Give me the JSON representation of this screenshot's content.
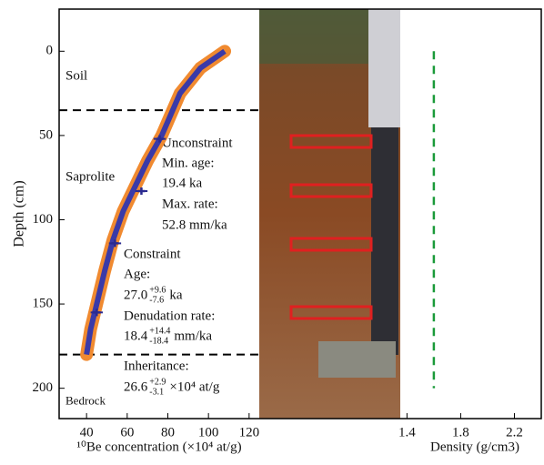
{
  "chart_data": [
    {
      "type": "profile",
      "xlabel": "¹⁰Be concentration (×10⁴ at/g)",
      "ylabel": "Depth (cm)",
      "xlim": [
        26.5,
        125
      ],
      "xticks": [
        40,
        60,
        80,
        100,
        120
      ],
      "ylim": [
        -25,
        218
      ],
      "yticks": [
        0,
        50,
        100,
        150,
        200
      ],
      "zones": [
        {
          "name": "Soil",
          "depth": 15
        },
        {
          "name": "Saprolite",
          "depth": 75
        },
        {
          "name": "Bedrock",
          "depth": 208
        }
      ],
      "boundaries": [
        35,
        180
      ],
      "series": [
        {
          "type": "line",
          "band_color": "#f08a30",
          "color": "#3a3aa8",
          "x": [
            108,
            96,
            86,
            77,
            70,
            64,
            58,
            53,
            49,
            45,
            42,
            40
          ],
          "y": [
            0,
            10,
            25,
            50,
            65,
            80,
            95,
            112,
            130,
            150,
            165,
            180
          ]
        },
        {
          "type": "scatter",
          "color": "#2a2a90",
          "x": [
            76,
            67,
            54,
            45
          ],
          "y": [
            52,
            83,
            114,
            155
          ],
          "xerr": [
            3,
            3,
            3,
            3
          ]
        }
      ],
      "annotations": {
        "unconstraint": {
          "title": "Unconstraint",
          "age_label": "Min. age:",
          "age": "19.4 ka",
          "rate_label": "Max. rate:",
          "rate": "52.8 mm/ka"
        },
        "constraint": {
          "title": "Constraint",
          "age_label": "Age:",
          "age": {
            "text": "27.0",
            "plus": "+9.6",
            "minus": "-7.6",
            "unit": "ka"
          },
          "rate_label": "Denudation rate:",
          "rate": {
            "text": "18.4",
            "plus": "+14.4",
            "minus": "-18.4",
            "unit": "mm/ka"
          },
          "inheritance_label": "Inheritance:",
          "inheritance": {
            "text": "26.6",
            "plus": "+2.9",
            "minus": "-3.1",
            "unit": "×10⁴ at/g"
          }
        }
      }
    },
    {
      "type": "line",
      "xlabel": "Density (g/cm3)",
      "xlim": [
        0.3,
        2.4
      ],
      "xticks": [
        1.4,
        1.8,
        2.2
      ],
      "series": [
        {
          "color": "#1a9a3a",
          "x": [
            1.6,
            1.6
          ],
          "y": [
            0,
            200
          ]
        }
      ]
    }
  ]
}
